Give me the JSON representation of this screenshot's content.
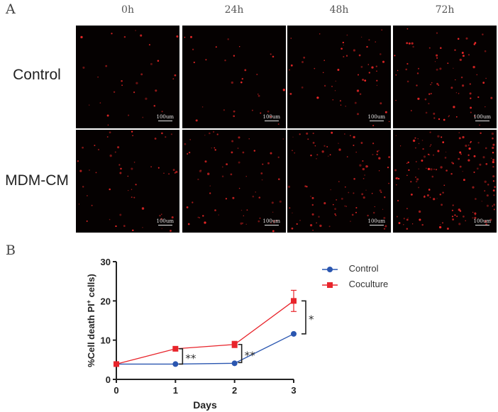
{
  "figure": {
    "panel_a_label": "A",
    "panel_b_label": "B",
    "columns": [
      "0h",
      "24h",
      "48h",
      "72h"
    ],
    "rows": [
      "Control",
      "MDM-CM"
    ],
    "scale_bar_label": "100um",
    "image_stain_color": "#ff2a2a",
    "micrographs": [
      {
        "row": "Control",
        "time": "0h",
        "density": 30,
        "seed": 11
      },
      {
        "row": "Control",
        "time": "24h",
        "density": 30,
        "seed": 23
      },
      {
        "row": "Control",
        "time": "48h",
        "density": 55,
        "seed": 37
      },
      {
        "row": "Control",
        "time": "72h",
        "density": 75,
        "seed": 41
      },
      {
        "row": "MDM-CM",
        "time": "0h",
        "density": 55,
        "seed": 53
      },
      {
        "row": "MDM-CM",
        "time": "24h",
        "density": 70,
        "seed": 67
      },
      {
        "row": "MDM-CM",
        "time": "48h",
        "density": 95,
        "seed": 71
      },
      {
        "row": "MDM-CM",
        "time": "72h",
        "density": 150,
        "seed": 89
      }
    ]
  },
  "chart_data": {
    "type": "line",
    "title": "",
    "xlabel": "Days",
    "ylabel": "%Cell death PI+ cells)",
    "ylabel_parts": {
      "pre": "%Cell death  PI",
      "sup": "+",
      "post": " cells)"
    },
    "x": [
      0,
      1,
      2,
      3
    ],
    "xticks": [
      "0",
      "1",
      "2",
      "3"
    ],
    "yticks": [
      "0",
      "10",
      "20",
      "30"
    ],
    "ylim": [
      0,
      30
    ],
    "xlim": [
      0,
      3
    ],
    "grid": false,
    "legend_position": "upper right (outside)",
    "series": [
      {
        "name": "Control",
        "color": "#2a56b0",
        "marker": "circle",
        "values": [
          3.9,
          3.9,
          4.1,
          11.6
        ],
        "errors": [
          0,
          0,
          0,
          0
        ]
      },
      {
        "name": "Coculture",
        "color": "#e8242b",
        "marker": "square",
        "values": [
          3.9,
          7.8,
          8.9,
          20.0
        ],
        "errors": [
          0,
          0,
          0.8,
          2.7
        ]
      }
    ],
    "annotations": [
      {
        "x": 1,
        "text": "**",
        "between": [
          "Control",
          "Coculture"
        ]
      },
      {
        "x": 2,
        "text": "**",
        "between": [
          "Control",
          "Coculture"
        ]
      },
      {
        "x": 3,
        "text": "*",
        "between": [
          "Control",
          "Coculture"
        ]
      }
    ]
  }
}
